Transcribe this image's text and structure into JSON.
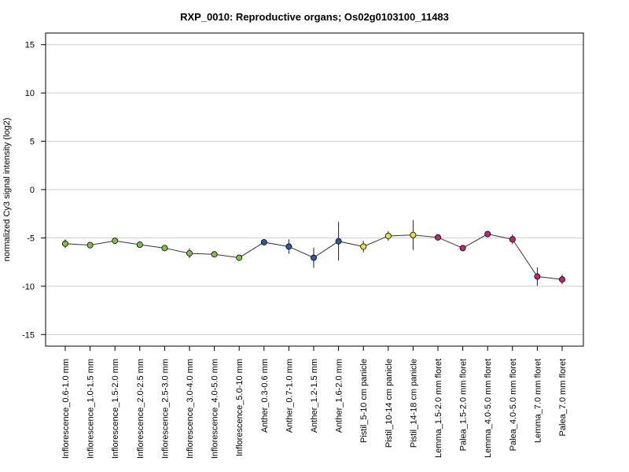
{
  "chart_data": {
    "type": "line",
    "title": "RXP_0010: Reproductive organs; Os02g0103100_11483",
    "xlabel": "",
    "ylabel": "normalized Cy3 signal intensity (log2)",
    "ylim": [
      -16.2,
      16.2
    ],
    "yticks": [
      15,
      10,
      5,
      0,
      -5,
      -10,
      -15
    ],
    "ytick_labels": [
      "15",
      "10",
      "5",
      "0",
      "-5",
      "-10",
      "-15"
    ],
    "grid": "horizontal at y ticks",
    "categories": [
      "Inflorescence_0.6-1.0 mm",
      "Inflorescence_1.0-1.5 mm",
      "Inflorescence_1.5-2.0 mm",
      "Inflorescence_2.0-2.5 mm",
      "Inflorescence_2.5-3.0 mm",
      "Inflorescence_3.0-4.0 mm",
      "Inflorescence_4.0-5.0 mm",
      "Inflorescence_5.0-10 mm",
      "Anther_0.3-0.6 mm",
      "Anther_0.7-1.0 mm",
      "Anther_1.2-1.5 mm",
      "Anther_1.6-2.0 mm",
      "Pistil_5-10 cm panicle",
      "Pistil_10-14 cm panicle",
      "Pistil_14-18 cm panicle",
      "Lemma_1.5-2.0 mm floret",
      "Palea_1.5-2.0 mm floret",
      "Lemma_4.0-5.0 mm floret",
      "Palea_4.0-5.0 mm floret",
      "Lemma_7.0 mm floret",
      "Palea_7.0 mm floret"
    ],
    "series": [
      {
        "values": [
          -5.6,
          -5.75,
          -5.3,
          -5.7,
          -6.05,
          -6.6,
          -6.7,
          -7.05,
          -5.45,
          -5.9,
          -7.05,
          -5.35,
          -5.9,
          -4.8,
          -4.7,
          -4.95,
          -6.05,
          -4.6,
          -5.15,
          -9.0,
          -9.3
        ],
        "errors": [
          0.45,
          0.25,
          0.2,
          0.25,
          0.2,
          0.5,
          0.25,
          0.2,
          0.2,
          0.75,
          1.05,
          2.0,
          0.6,
          0.5,
          1.55,
          0.3,
          0.15,
          0.3,
          0.5,
          0.95,
          0.5
        ],
        "colors": [
          "#7fc241",
          "#7fc241",
          "#7fc241",
          "#7fc241",
          "#7fc241",
          "#7fc241",
          "#7fc241",
          "#7fc241",
          "#2c5aa0",
          "#2c5aa0",
          "#2c5aa0",
          "#2c5aa0",
          "#e9df3a",
          "#e9df3a",
          "#e9df3a",
          "#c0237a",
          "#c0237a",
          "#c0237a",
          "#c0237a",
          "#c0237a",
          "#c0237a"
        ]
      }
    ]
  }
}
